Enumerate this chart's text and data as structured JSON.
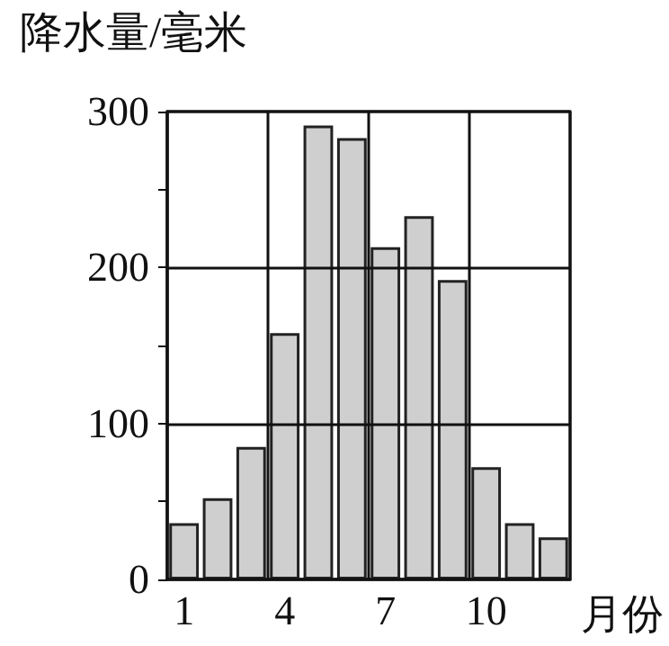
{
  "chart_data": {
    "type": "bar",
    "ylabel": "降水量/毫米",
    "xlabel": "月份",
    "categories": [
      "1",
      null,
      null,
      "4",
      null,
      null,
      "7",
      null,
      null,
      "10",
      null,
      null
    ],
    "values": [
      36,
      52,
      85,
      158,
      291,
      283,
      213,
      233,
      192,
      72,
      36,
      27
    ],
    "color": "#cfcfcf",
    "ylim": [
      0,
      300
    ],
    "yticks": [
      0,
      {
        "value": 50,
        "label": null
      },
      100,
      {
        "value": 150,
        "label": null
      },
      200,
      {
        "value": 250,
        "label": null
      },
      300
    ],
    "grid": true
  }
}
